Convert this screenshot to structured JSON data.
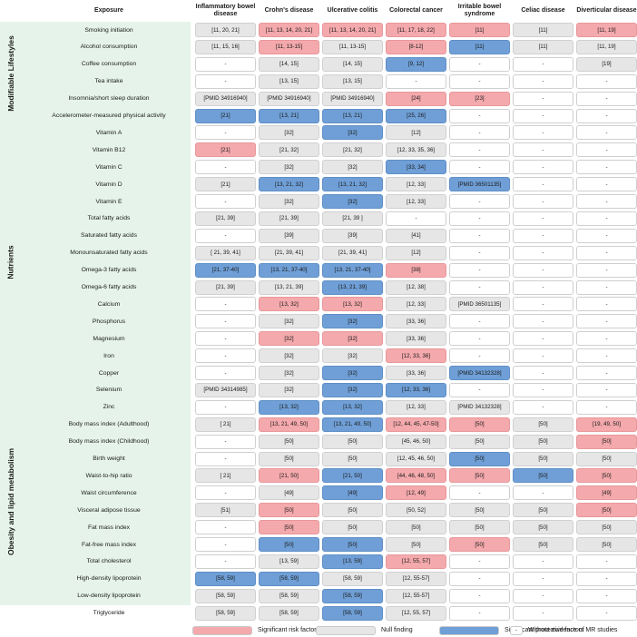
{
  "headers": {
    "exposure": "Exposure",
    "outcomes": [
      "Inflammatory bowel disease",
      "Crohn's disease",
      "Ulcerative colitis",
      "Colorectal cancer",
      "Irritable bowel syndrome",
      "Celiac disease",
      "Diverticular disease"
    ]
  },
  "categories": [
    {
      "label": "Modifiable Lifestyles",
      "first_row": 0,
      "row_count": 6
    },
    {
      "label": "Nutrients",
      "first_row": 6,
      "row_count": 16
    },
    {
      "label": "Obesity and lipid metabolism",
      "first_row": 22,
      "row_count": 12
    }
  ],
  "rows": [
    {
      "exposure": "Smoking initiation",
      "cells": [
        [
          "[11, 20, 21]",
          "g"
        ],
        [
          "[11, 13, 14, 20, 21]",
          "r"
        ],
        [
          "[11, 13, 14, 20, 21]",
          "r"
        ],
        [
          "[11, 17, 18, 22]",
          "r"
        ],
        [
          "[11]",
          "r"
        ],
        [
          "[11]",
          "g"
        ],
        [
          "[11, 19]",
          "r"
        ]
      ]
    },
    {
      "exposure": "Alcohol consumption",
      "cells": [
        [
          "[11, 15, 16]",
          "g"
        ],
        [
          "[11, 13-15]",
          "r"
        ],
        [
          "[11, 13-15]",
          "g"
        ],
        [
          "[8-12]",
          "r"
        ],
        [
          "[11]",
          "b"
        ],
        [
          "[11]",
          "g"
        ],
        [
          "[11, 19]",
          "g"
        ]
      ]
    },
    {
      "exposure": "Coffee consumption",
      "cells": [
        [
          "-",
          "w"
        ],
        [
          "[14, 15]",
          "g"
        ],
        [
          "[14, 15]",
          "g"
        ],
        [
          "[9, 12]",
          "b"
        ],
        [
          "-",
          "w"
        ],
        [
          "-",
          "w"
        ],
        [
          "[19]",
          "g"
        ]
      ]
    },
    {
      "exposure": "Tea intake",
      "cells": [
        [
          "-",
          "w"
        ],
        [
          "[13, 15]",
          "g"
        ],
        [
          "[13, 15]",
          "g"
        ],
        [
          "-",
          "w"
        ],
        [
          "-",
          "w"
        ],
        [
          "-",
          "w"
        ],
        [
          "-",
          "w"
        ]
      ]
    },
    {
      "exposure": "Insomnia/short sleep duration",
      "cells": [
        [
          "[PMID 34916940]",
          "g"
        ],
        [
          "[PMID 34916940]",
          "g"
        ],
        [
          "[PMID 34916940]",
          "g"
        ],
        [
          "[24]",
          "r"
        ],
        [
          "[23]",
          "r"
        ],
        [
          "-",
          "w"
        ],
        [
          "-",
          "w"
        ]
      ]
    },
    {
      "exposure": "Accelerometer-measured physical activity",
      "cells": [
        [
          "[21]",
          "b"
        ],
        [
          "[13, 21]",
          "b"
        ],
        [
          "[13, 21]",
          "b"
        ],
        [
          "[25, 26]",
          "b"
        ],
        [
          "-",
          "w"
        ],
        [
          "-",
          "w"
        ],
        [
          "-",
          "w"
        ]
      ]
    },
    {
      "exposure": "Vitamin A",
      "cells": [
        [
          "-",
          "w"
        ],
        [
          "[32]",
          "g"
        ],
        [
          "[32]",
          "b"
        ],
        [
          "[12]",
          "g"
        ],
        [
          "-",
          "w"
        ],
        [
          "-",
          "w"
        ],
        [
          "-",
          "w"
        ]
      ]
    },
    {
      "exposure": "Vitamin B12",
      "cells": [
        [
          "[21]",
          "r"
        ],
        [
          "[21, 32]",
          "g"
        ],
        [
          "[21, 32]",
          "g"
        ],
        [
          "[12, 33, 35, 36]",
          "g"
        ],
        [
          "-",
          "w"
        ],
        [
          "-",
          "w"
        ],
        [
          "-",
          "w"
        ]
      ]
    },
    {
      "exposure": "Vitamin C",
      "cells": [
        [
          "-",
          "w"
        ],
        [
          "[32]",
          "g"
        ],
        [
          "[32]",
          "g"
        ],
        [
          "[33, 34]",
          "b"
        ],
        [
          "-",
          "w"
        ],
        [
          "-",
          "w"
        ],
        [
          "-",
          "w"
        ]
      ]
    },
    {
      "exposure": "Vitamin D",
      "cells": [
        [
          "[21]",
          "g"
        ],
        [
          "[13, 21, 32]",
          "b"
        ],
        [
          "[13, 21, 32]",
          "b"
        ],
        [
          "[12, 33]",
          "g"
        ],
        [
          "[PMID 36501135]",
          "b"
        ],
        [
          "-",
          "w"
        ],
        [
          "-",
          "w"
        ]
      ]
    },
    {
      "exposure": "Vitamin E",
      "cells": [
        [
          "-",
          "w"
        ],
        [
          "[32]",
          "g"
        ],
        [
          "[32]",
          "b"
        ],
        [
          "[12, 33]",
          "g"
        ],
        [
          "-",
          "w"
        ],
        [
          "-",
          "w"
        ],
        [
          "-",
          "w"
        ]
      ]
    },
    {
      "exposure": "Total fatty acids",
      "cells": [
        [
          "[21, 39]",
          "g"
        ],
        [
          "[21, 39]",
          "g"
        ],
        [
          "[21, 39 ]",
          "g"
        ],
        [
          "-",
          "w"
        ],
        [
          "-",
          "w"
        ],
        [
          "-",
          "w"
        ],
        [
          "-",
          "w"
        ]
      ]
    },
    {
      "exposure": "Saturated fatty acids",
      "cells": [
        [
          "-",
          "w"
        ],
        [
          "[39]",
          "g"
        ],
        [
          "[39]",
          "g"
        ],
        [
          "[41]",
          "g"
        ],
        [
          "-",
          "w"
        ],
        [
          "-",
          "w"
        ],
        [
          "-",
          "w"
        ]
      ]
    },
    {
      "exposure": "Monounsaturated fatty acids",
      "cells": [
        [
          "[ 21, 39, 41]",
          "g"
        ],
        [
          "[21, 39, 41]",
          "g"
        ],
        [
          "[21, 39, 41]",
          "g"
        ],
        [
          "[12]",
          "g"
        ],
        [
          "-",
          "w"
        ],
        [
          "-",
          "w"
        ],
        [
          "-",
          "w"
        ]
      ]
    },
    {
      "exposure": "Omega-3 fatty acids",
      "cells": [
        [
          "[21, 37-40]",
          "b"
        ],
        [
          "[13, 21, 37-40]",
          "b"
        ],
        [
          "[13, 21, 37-40]",
          "b"
        ],
        [
          "[38]",
          "r"
        ],
        [
          "-",
          "w"
        ],
        [
          "-",
          "w"
        ],
        [
          "-",
          "w"
        ]
      ]
    },
    {
      "exposure": "Omega-6 fatty acids",
      "cells": [
        [
          "[21, 39]",
          "g"
        ],
        [
          "[13, 21, 39]",
          "g"
        ],
        [
          "[13, 21, 39]",
          "b"
        ],
        [
          "[12, 38]",
          "g"
        ],
        [
          "-",
          "w"
        ],
        [
          "-",
          "w"
        ],
        [
          "-",
          "w"
        ]
      ]
    },
    {
      "exposure": "Calcium",
      "cells": [
        [
          "-",
          "w"
        ],
        [
          "[13, 32]",
          "r"
        ],
        [
          "[13, 32]",
          "r"
        ],
        [
          "[12, 33]",
          "g"
        ],
        [
          "[PMID 36501135]",
          "g"
        ],
        [
          "-",
          "w"
        ],
        [
          "-",
          "w"
        ]
      ]
    },
    {
      "exposure": "Phosphorus",
      "cells": [
        [
          "-",
          "w"
        ],
        [
          "[32]",
          "g"
        ],
        [
          "[32]",
          "b"
        ],
        [
          "[33, 36]",
          "g"
        ],
        [
          "-",
          "w"
        ],
        [
          "-",
          "w"
        ],
        [
          "-",
          "w"
        ]
      ]
    },
    {
      "exposure": "Magnesium",
      "cells": [
        [
          "-",
          "w"
        ],
        [
          "[32]",
          "r"
        ],
        [
          "[32]",
          "r"
        ],
        [
          "[33, 36]",
          "g"
        ],
        [
          "-",
          "w"
        ],
        [
          "-",
          "w"
        ],
        [
          "-",
          "w"
        ]
      ]
    },
    {
      "exposure": "Iron",
      "cells": [
        [
          "-",
          "w"
        ],
        [
          "[32]",
          "g"
        ],
        [
          "[32]",
          "g"
        ],
        [
          "[12, 33, 36]",
          "r"
        ],
        [
          "-",
          "w"
        ],
        [
          "-",
          "w"
        ],
        [
          "-",
          "w"
        ]
      ]
    },
    {
      "exposure": "Copper",
      "cells": [
        [
          "-",
          "w"
        ],
        [
          "[32]",
          "g"
        ],
        [
          "[32]",
          "b"
        ],
        [
          "[33, 36]",
          "g"
        ],
        [
          "[PMID 34132328]",
          "b"
        ],
        [
          "-",
          "w"
        ],
        [
          "-",
          "w"
        ]
      ]
    },
    {
      "exposure": "Selenium",
      "cells": [
        [
          "[PMID 34314985]",
          "g"
        ],
        [
          "[32]",
          "g"
        ],
        [
          "[32]",
          "b"
        ],
        [
          "[12, 33, 36]",
          "b"
        ],
        [
          "-",
          "w"
        ],
        [
          "-",
          "w"
        ],
        [
          "-",
          "w"
        ]
      ]
    },
    {
      "exposure": "Zinc",
      "cells": [
        [
          "-",
          "w"
        ],
        [
          "[13, 32]",
          "b"
        ],
        [
          "[13, 32]",
          "b"
        ],
        [
          "[12, 33]",
          "g"
        ],
        [
          "[PMID 34132328]",
          "g"
        ],
        [
          "-",
          "w"
        ],
        [
          "-",
          "w"
        ]
      ]
    },
    {
      "exposure": "Body mass index (Adulthood)",
      "cells": [
        [
          "[ 21]",
          "g"
        ],
        [
          "[13, 21, 49, 50]",
          "r"
        ],
        [
          "[13, 21, 49, 50]",
          "b"
        ],
        [
          "[12, 44, 45, 47-50]",
          "r"
        ],
        [
          "[50]",
          "r"
        ],
        [
          "[50]",
          "g"
        ],
        [
          "[19, 49, 50]",
          "r"
        ]
      ]
    },
    {
      "exposure": "Body mass index (Childhood)",
      "cells": [
        [
          "-",
          "w"
        ],
        [
          "[50]",
          "g"
        ],
        [
          "[50]",
          "g"
        ],
        [
          "[45, 46, 50]",
          "g"
        ],
        [
          "[50]",
          "g"
        ],
        [
          "[50]",
          "g"
        ],
        [
          "[50]",
          "r"
        ]
      ]
    },
    {
      "exposure": "Birth weight",
      "cells": [
        [
          "-",
          "w"
        ],
        [
          "[50]",
          "g"
        ],
        [
          "[50]",
          "g"
        ],
        [
          "[12, 45, 46, 50]",
          "g"
        ],
        [
          "[50]",
          "b"
        ],
        [
          "[50]",
          "g"
        ],
        [
          "[50]",
          "g"
        ]
      ]
    },
    {
      "exposure": "Waist-to-hip ratio",
      "cells": [
        [
          "[ 21]",
          "g"
        ],
        [
          "[21, 50]",
          "r"
        ],
        [
          "[21, 50]",
          "b"
        ],
        [
          "[44, 46, 48, 50]",
          "r"
        ],
        [
          "[50]",
          "r"
        ],
        [
          "[50]",
          "b"
        ],
        [
          "[50]",
          "r"
        ]
      ]
    },
    {
      "exposure": "Waist circumference",
      "cells": [
        [
          "-",
          "w"
        ],
        [
          "[49]",
          "g"
        ],
        [
          "[49]",
          "b"
        ],
        [
          "[12, 49]",
          "r"
        ],
        [
          "-",
          "w"
        ],
        [
          "-",
          "w"
        ],
        [
          "[49]",
          "r"
        ]
      ]
    },
    {
      "exposure": "Visceral adipose tissue",
      "cells": [
        [
          "[51]",
          "g"
        ],
        [
          "[50]",
          "r"
        ],
        [
          "[50]",
          "g"
        ],
        [
          "[50, 52]",
          "g"
        ],
        [
          "[50]",
          "g"
        ],
        [
          "[50]",
          "g"
        ],
        [
          "[50]",
          "r"
        ]
      ]
    },
    {
      "exposure": "Fat mass index",
      "cells": [
        [
          "-",
          "w"
        ],
        [
          "[50]",
          "r"
        ],
        [
          "[50]",
          "g"
        ],
        [
          "[50]",
          "g"
        ],
        [
          "[50]",
          "g"
        ],
        [
          "[50]",
          "g"
        ],
        [
          "[50]",
          "g"
        ]
      ]
    },
    {
      "exposure": "Fat-free mass index",
      "cells": [
        [
          "-",
          "w"
        ],
        [
          "[50]",
          "b"
        ],
        [
          "[50]",
          "b"
        ],
        [
          "[50]",
          "g"
        ],
        [
          "[50]",
          "r"
        ],
        [
          "[50]",
          "g"
        ],
        [
          "[50]",
          "g"
        ]
      ]
    },
    {
      "exposure": "Total cholesterol",
      "cells": [
        [
          "-",
          "w"
        ],
        [
          "[13, 59]",
          "g"
        ],
        [
          "[13, 59]",
          "b"
        ],
        [
          "[12, 55, 57]",
          "r"
        ],
        [
          "-",
          "w"
        ],
        [
          "-",
          "w"
        ],
        [
          "-",
          "w"
        ]
      ]
    },
    {
      "exposure": "High-density lipoprotein",
      "cells": [
        [
          "[58, 59]",
          "b"
        ],
        [
          "[58, 59]",
          "b"
        ],
        [
          "[58, 59]",
          "g"
        ],
        [
          "[12, 55-57]",
          "g"
        ],
        [
          "-",
          "w"
        ],
        [
          "-",
          "w"
        ],
        [
          "-",
          "w"
        ]
      ]
    },
    {
      "exposure": "Low-density lipoprotein",
      "cells": [
        [
          "[58, 59]",
          "g"
        ],
        [
          "[58, 59]",
          "g"
        ],
        [
          "[58, 59]",
          "b"
        ],
        [
          "[12, 55-57]",
          "g"
        ],
        [
          "-",
          "w"
        ],
        [
          "-",
          "w"
        ],
        [
          "-",
          "w"
        ]
      ]
    },
    {
      "exposure": "Triglyceride",
      "cells": [
        [
          "[58, 59]",
          "g"
        ],
        [
          "[58, 59]",
          "g"
        ],
        [
          "[58, 59]",
          "b"
        ],
        [
          "[12, 55, 57]",
          "g"
        ],
        [
          "-",
          "w"
        ],
        [
          "-",
          "w"
        ],
        [
          "-",
          "w"
        ]
      ]
    }
  ],
  "legend": [
    {
      "label": "Significant risk factors",
      "color": "#f4a9ac",
      "symbol": ""
    },
    {
      "label": "Null finding",
      "color": "#e6e6e6",
      "symbol": ""
    },
    {
      "label": "Significant protective factors",
      "color": "#6f9fd6",
      "symbol": ""
    },
    {
      "label": "Without evidence of MR studies",
      "color": "#ffffff",
      "symbol": "-"
    }
  ]
}
